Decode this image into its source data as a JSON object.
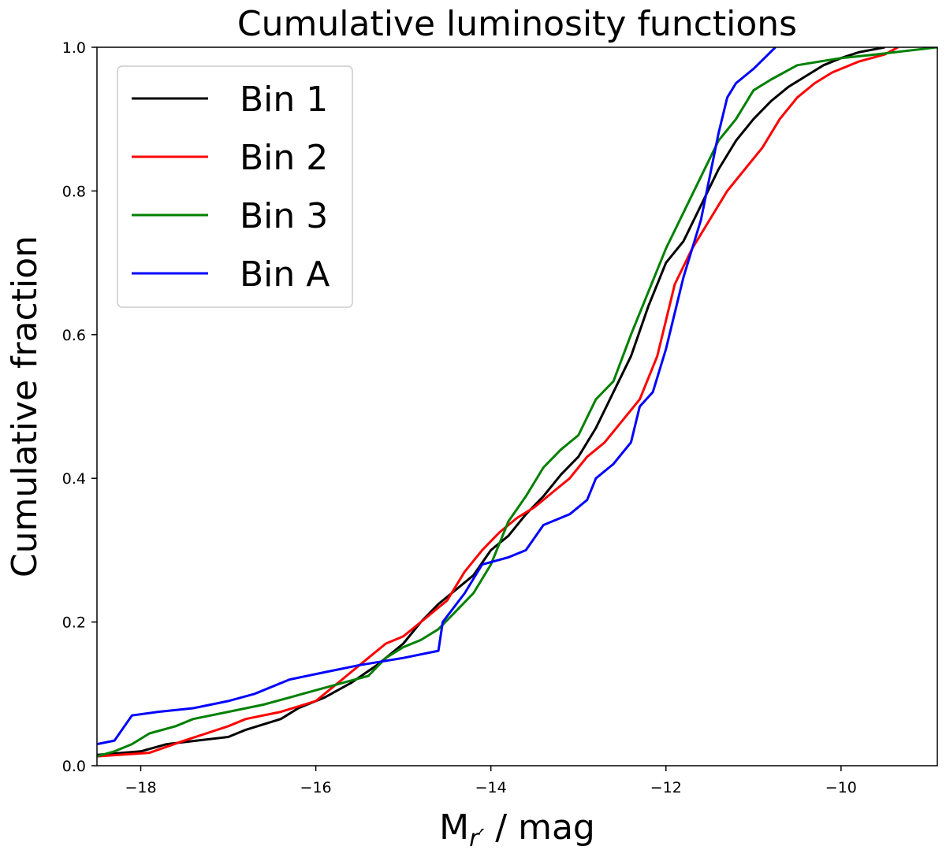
{
  "chart_data": {
    "type": "line",
    "title": "Cumulative luminosity functions",
    "xlabel_main": "M",
    "xlabel_sub": "r′",
    "xlabel_rest": " / mag",
    "ylabel": "Cumulative fraction",
    "xlim": [
      -18.5,
      -8.9
    ],
    "ylim": [
      0.0,
      1.0
    ],
    "x_ticks": [
      -18,
      -16,
      -14,
      -12,
      -10
    ],
    "x_tick_labels": [
      "−18",
      "−16",
      "−14",
      "−12",
      "−10"
    ],
    "y_ticks": [
      0.0,
      0.2,
      0.4,
      0.6,
      0.8,
      1.0
    ],
    "y_tick_labels": [
      "0.0",
      "0.2",
      "0.4",
      "0.6",
      "0.8",
      "1.0"
    ],
    "grid": false,
    "legend_position": "upper-left",
    "series": [
      {
        "name": "Bin 1",
        "color": "#000000",
        "x": [
          -18.5,
          -18.0,
          -17.7,
          -17.0,
          -16.8,
          -16.4,
          -16.2,
          -15.9,
          -15.6,
          -15.3,
          -15.0,
          -14.8,
          -14.6,
          -14.4,
          -14.2,
          -14.0,
          -13.8,
          -13.6,
          -13.4,
          -13.2,
          -13.0,
          -12.8,
          -12.6,
          -12.4,
          -12.2,
          -12.0,
          -11.8,
          -11.6,
          -11.4,
          -11.2,
          -11.0,
          -10.8,
          -10.6,
          -10.4,
          -10.2,
          -10.0,
          -9.8,
          -9.5
        ],
        "y": [
          0.015,
          0.02,
          0.03,
          0.04,
          0.05,
          0.065,
          0.08,
          0.095,
          0.115,
          0.14,
          0.17,
          0.2,
          0.225,
          0.245,
          0.265,
          0.3,
          0.32,
          0.35,
          0.375,
          0.405,
          0.43,
          0.47,
          0.52,
          0.57,
          0.64,
          0.7,
          0.73,
          0.78,
          0.83,
          0.87,
          0.9,
          0.925,
          0.945,
          0.96,
          0.975,
          0.985,
          0.993,
          1.0
        ]
      },
      {
        "name": "Bin 2",
        "color": "#ff0000",
        "x": [
          -18.5,
          -17.9,
          -17.5,
          -17.0,
          -16.8,
          -16.4,
          -16.0,
          -15.7,
          -15.4,
          -15.2,
          -15.0,
          -14.8,
          -14.5,
          -14.3,
          -14.1,
          -13.9,
          -13.7,
          -13.5,
          -13.3,
          -13.1,
          -12.9,
          -12.7,
          -12.5,
          -12.3,
          -12.1,
          -11.9,
          -11.7,
          -11.5,
          -11.3,
          -11.1,
          -10.9,
          -10.7,
          -10.5,
          -10.3,
          -10.1,
          -9.8,
          -9.5,
          -9.35
        ],
        "y": [
          0.013,
          0.018,
          0.035,
          0.055,
          0.065,
          0.075,
          0.09,
          0.12,
          0.15,
          0.17,
          0.18,
          0.2,
          0.23,
          0.27,
          0.3,
          0.325,
          0.345,
          0.36,
          0.38,
          0.4,
          0.43,
          0.45,
          0.48,
          0.51,
          0.57,
          0.67,
          0.72,
          0.76,
          0.8,
          0.83,
          0.86,
          0.9,
          0.93,
          0.95,
          0.965,
          0.98,
          0.99,
          1.0
        ]
      },
      {
        "name": "Bin 3",
        "color": "#008000",
        "x": [
          -18.5,
          -18.3,
          -18.1,
          -17.9,
          -17.6,
          -17.4,
          -17.0,
          -16.6,
          -16.3,
          -16.0,
          -15.7,
          -15.4,
          -15.2,
          -15.0,
          -14.8,
          -14.6,
          -14.4,
          -14.2,
          -14.0,
          -13.8,
          -13.6,
          -13.4,
          -13.2,
          -13.0,
          -12.8,
          -12.6,
          -12.4,
          -12.2,
          -12.0,
          -11.8,
          -11.6,
          -11.4,
          -11.2,
          -11.0,
          -10.8,
          -10.5,
          -10.0,
          -9.6,
          -8.9
        ],
        "y": [
          0.013,
          0.02,
          0.03,
          0.045,
          0.055,
          0.065,
          0.075,
          0.085,
          0.095,
          0.105,
          0.115,
          0.125,
          0.15,
          0.165,
          0.175,
          0.19,
          0.215,
          0.24,
          0.28,
          0.34,
          0.375,
          0.415,
          0.44,
          0.46,
          0.51,
          0.535,
          0.6,
          0.66,
          0.72,
          0.77,
          0.82,
          0.87,
          0.9,
          0.94,
          0.955,
          0.975,
          0.985,
          0.99,
          1.0
        ]
      },
      {
        "name": "Bin A",
        "color": "#0000ff",
        "x": [
          -18.5,
          -18.3,
          -18.1,
          -17.8,
          -17.4,
          -17.0,
          -16.7,
          -16.3,
          -15.9,
          -15.5,
          -15.0,
          -14.6,
          -14.55,
          -14.3,
          -14.1,
          -13.8,
          -13.6,
          -13.4,
          -13.1,
          -12.9,
          -12.8,
          -12.6,
          -12.4,
          -12.3,
          -12.15,
          -12.0,
          -11.9,
          -11.8,
          -11.7,
          -11.6,
          -11.5,
          -11.4,
          -11.3,
          -11.2,
          -11.0,
          -10.75
        ],
        "y": [
          0.03,
          0.035,
          0.07,
          0.075,
          0.08,
          0.09,
          0.1,
          0.12,
          0.13,
          0.14,
          0.15,
          0.16,
          0.2,
          0.24,
          0.28,
          0.29,
          0.3,
          0.335,
          0.35,
          0.37,
          0.4,
          0.42,
          0.45,
          0.5,
          0.52,
          0.58,
          0.63,
          0.68,
          0.72,
          0.76,
          0.82,
          0.88,
          0.93,
          0.95,
          0.97,
          1.0
        ]
      }
    ]
  }
}
